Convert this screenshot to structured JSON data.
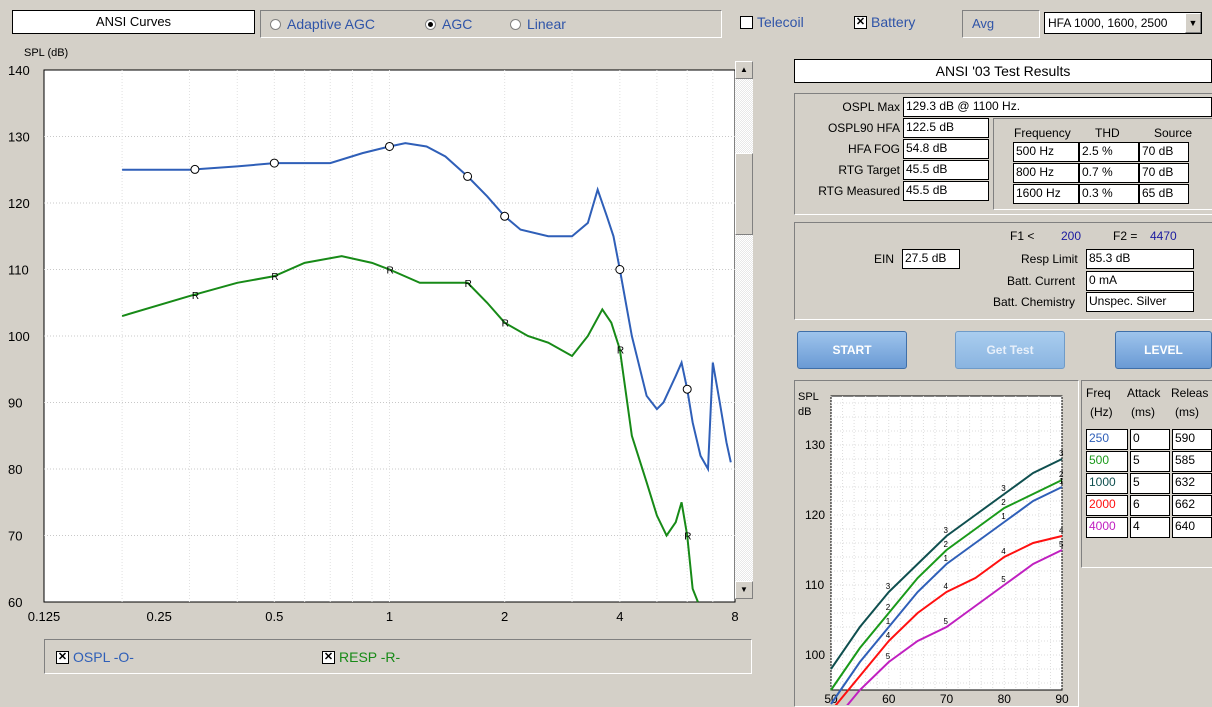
{
  "toolbar": {
    "curves_title": "ANSI Curves",
    "modes": [
      {
        "label": "Adaptive AGC",
        "selected": false
      },
      {
        "label": "AGC",
        "selected": true
      },
      {
        "label": "Linear",
        "selected": false
      }
    ],
    "telecoil": {
      "label": "Telecoil",
      "checked": false
    },
    "battery": {
      "label": "Battery",
      "checked": true
    },
    "avg_label": "Avg",
    "avg_value": "HFA 1000, 1600, 2500"
  },
  "main_chart": {
    "ylabel": "SPL (dB)",
    "y_ticks": [
      "140",
      "130",
      "120",
      "110",
      "100",
      "90",
      "80",
      "70",
      "60"
    ],
    "x_ticks": [
      "0.125",
      "0.25",
      "0.5",
      "1",
      "2",
      "4",
      "8"
    ],
    "legend": [
      {
        "label": "OSPL -O-",
        "checked": true
      },
      {
        "label": "RESP -R-",
        "checked": true
      }
    ]
  },
  "chart_data": [
    {
      "type": "line",
      "ylabel": "SPL (dB)",
      "xlabel": "",
      "x_scale": "log",
      "x_ticks": [
        0.125,
        0.25,
        0.5,
        1,
        2,
        4,
        8
      ],
      "ylim": [
        60,
        140
      ],
      "series": [
        {
          "name": "OSPL -O-",
          "color": "#2f5fb8",
          "marker": "O",
          "x": [
            0.2,
            0.3,
            0.4,
            0.5,
            0.6,
            0.7,
            0.85,
            1.0,
            1.1,
            1.25,
            1.4,
            1.6,
            1.8,
            2.0,
            2.2,
            2.6,
            3.0,
            3.3,
            3.5,
            3.7,
            3.85,
            4.0,
            4.3,
            4.7,
            5.0,
            5.2,
            5.6,
            5.8,
            6.0,
            6.2,
            6.5,
            6.8,
            7.0,
            7.3,
            7.6,
            7.8
          ],
          "y": [
            125,
            125,
            125.5,
            126,
            126,
            126,
            127.5,
            128.5,
            129,
            128.5,
            127,
            124,
            121,
            118,
            116,
            115,
            115,
            117,
            122,
            118,
            115,
            110,
            100,
            91,
            89,
            90,
            94,
            96,
            92,
            87,
            82,
            80,
            96,
            90,
            84,
            81
          ],
          "markers": [
            0.31,
            0.5,
            1.0,
            1.6,
            2.0,
            4.0,
            6.0
          ]
        },
        {
          "name": "RESP -R-",
          "color": "#178a17",
          "marker": "R",
          "x": [
            0.2,
            0.3,
            0.4,
            0.5,
            0.6,
            0.75,
            0.9,
            1.0,
            1.2,
            1.4,
            1.6,
            1.8,
            2.0,
            2.3,
            2.6,
            3.0,
            3.3,
            3.6,
            3.8,
            4.0,
            4.3,
            4.7,
            5.0,
            5.3,
            5.6,
            5.8,
            6.0,
            6.2,
            6.4
          ],
          "y": [
            103,
            106,
            108,
            109,
            111,
            112,
            111,
            110,
            108,
            108,
            108,
            105,
            102,
            100,
            99,
            97,
            100,
            104,
            102,
            98,
            85,
            78,
            73,
            70,
            72,
            75,
            70,
            62,
            60
          ],
          "markers": [
            0.31,
            0.5,
            1.0,
            1.6,
            2.0,
            4.0,
            6.0
          ]
        }
      ]
    },
    {
      "type": "line",
      "ylabel": "SPL dB",
      "xlabel": "",
      "xlim": [
        50,
        90
      ],
      "ylim": [
        95,
        137
      ],
      "x_ticks": [
        50,
        60,
        70,
        80,
        90
      ],
      "y_ticks": [
        100,
        110,
        120,
        130
      ],
      "series": [
        {
          "name": "3",
          "color": "#0f4f4f",
          "x": [
            50,
            55,
            60,
            65,
            70,
            75,
            80,
            85,
            90
          ],
          "y": [
            98,
            104,
            109,
            113,
            117,
            120,
            123,
            126,
            128
          ]
        },
        {
          "name": "2",
          "color": "#1a9a1a",
          "x": [
            50,
            55,
            60,
            65,
            70,
            75,
            80,
            85,
            90
          ],
          "y": [
            95,
            101,
            106,
            111,
            115,
            118,
            121,
            123,
            125
          ]
        },
        {
          "name": "1",
          "color": "#2f5fb8",
          "x": [
            50,
            55,
            60,
            65,
            70,
            75,
            80,
            85,
            90
          ],
          "y": [
            93,
            99,
            104,
            109,
            113,
            116,
            119,
            122,
            124
          ]
        },
        {
          "name": "4",
          "color": "#ff1010",
          "x": [
            50,
            55,
            60,
            65,
            70,
            75,
            80,
            85,
            90
          ],
          "y": [
            92,
            97,
            102,
            106,
            109,
            111,
            114,
            116,
            117
          ]
        },
        {
          "name": "5",
          "color": "#c020c0",
          "x": [
            50,
            55,
            60,
            65,
            70,
            75,
            80,
            85,
            90
          ],
          "y": [
            90,
            95,
            99,
            102,
            104,
            107,
            110,
            113,
            115
          ]
        }
      ]
    }
  ],
  "results": {
    "title": "ANSI '03 Test Results",
    "rows": [
      {
        "label": "OSPL Max",
        "value": "129.3 dB @ 1100 Hz."
      },
      {
        "label": "OSPL90 HFA",
        "value": "122.5 dB"
      },
      {
        "label": "HFA FOG",
        "value": "54.8 dB"
      },
      {
        "label": "RTG Target",
        "value": "45.5 dB"
      },
      {
        "label": "RTG Measured",
        "value": "45.5 dB"
      }
    ],
    "thd_headers": [
      "Frequency",
      "THD",
      "Source"
    ],
    "thd_rows": [
      [
        "500 Hz",
        "2.5 %",
        "70 dB"
      ],
      [
        "800 Hz",
        "0.7 %",
        "70 dB"
      ],
      [
        "1600 Hz",
        "0.3 %",
        "65 dB"
      ]
    ],
    "f1_label": "F1 <",
    "f1_value": "200",
    "f2_label": "F2 =",
    "f2_value": "4470",
    "ein_label": "EIN",
    "ein_value": "27.5 dB",
    "resp_limit_label": "Resp Limit",
    "resp_limit_value": "85.3 dB",
    "batt_current_label": "Batt. Current",
    "batt_current_value": "0 mA",
    "batt_chem_label": "Batt. Chemistry",
    "batt_chem_value": "Unspec. Silver"
  },
  "buttons": {
    "start": "START",
    "get_test": "Get Test",
    "level": "LEVEL"
  },
  "io_chart": {
    "ylabel_1": "SPL",
    "ylabel_2": "dB",
    "x_ticks": [
      "50",
      "60",
      "70",
      "80",
      "90"
    ],
    "y_ticks": [
      "130",
      "120",
      "110",
      "100"
    ]
  },
  "attack_table": {
    "headers": [
      [
        "Freq",
        "(Hz)"
      ],
      [
        "Attack",
        "(ms)"
      ],
      [
        "Releas",
        "(ms)"
      ]
    ],
    "rows": [
      {
        "freq": "250",
        "attack": "0",
        "release": "590",
        "color": "#2f5fb8"
      },
      {
        "freq": "500",
        "attack": "5",
        "release": "585",
        "color": "#1a9a1a"
      },
      {
        "freq": "1000",
        "attack": "5",
        "release": "632",
        "color": "#0f4f4f"
      },
      {
        "freq": "2000",
        "attack": "6",
        "release": "662",
        "color": "#ff1010"
      },
      {
        "freq": "4000",
        "attack": "4",
        "release": "640",
        "color": "#c020c0"
      }
    ]
  }
}
